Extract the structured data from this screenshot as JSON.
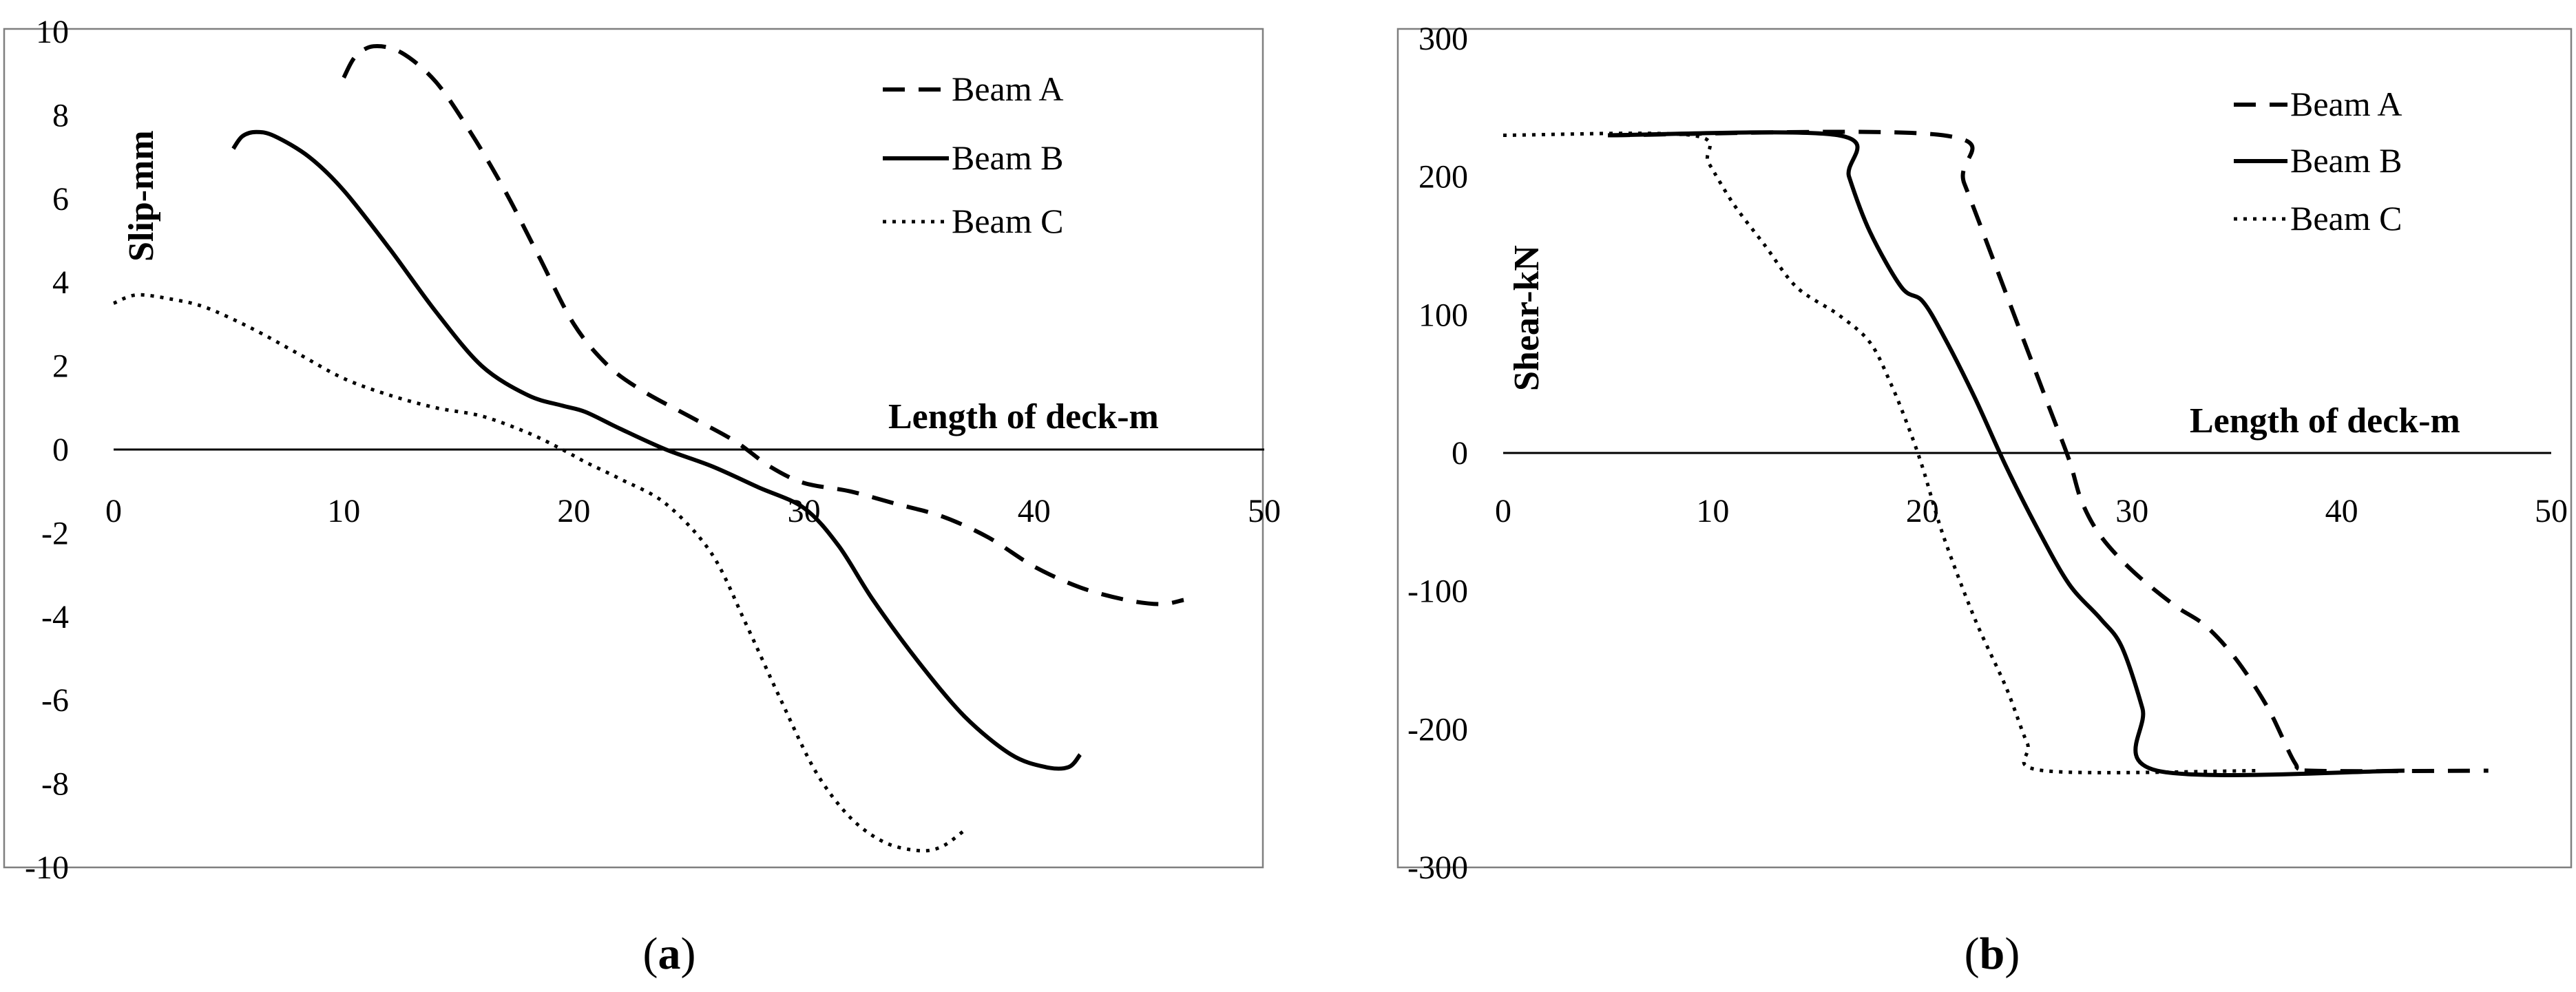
{
  "chart_data": [
    {
      "type": "line",
      "panel": "a",
      "caption_open": "(",
      "caption_letter": "a",
      "caption_close": ")",
      "title": "",
      "xlabel": "Length of deck-m",
      "ylabel": "Slip-mm",
      "xlim": [
        0,
        50
      ],
      "ylim": [
        -10,
        10
      ],
      "xticks": [
        0,
        10,
        20,
        30,
        40,
        50
      ],
      "yticks": [
        10,
        8,
        6,
        4,
        2,
        0,
        -2,
        -4,
        -6,
        -8,
        -10
      ],
      "legend_position": "top-right",
      "series": [
        {
          "name": "Beam A",
          "style": "dashed",
          "x": [
            10,
            10.5,
            11.3,
            12.5,
            14,
            15.5,
            17,
            18.5,
            20,
            21.5,
            23,
            25,
            27,
            28.5,
            30,
            32,
            34,
            36,
            38,
            40,
            42,
            44,
            45.5,
            46.5
          ],
          "y": [
            8.9,
            9.4,
            9.65,
            9.5,
            8.8,
            7.6,
            6.2,
            4.6,
            3.0,
            2.0,
            1.4,
            0.8,
            0.2,
            -0.4,
            -0.8,
            -1.0,
            -1.3,
            -1.6,
            -2.1,
            -2.8,
            -3.3,
            -3.6,
            -3.7,
            -3.6
          ]
        },
        {
          "name": "Beam B",
          "style": "solid",
          "x": [
            5.2,
            5.6,
            6.2,
            7,
            8.5,
            10,
            12,
            14,
            16,
            18,
            19.5,
            20.5,
            22,
            24,
            26,
            28,
            30,
            31.5,
            33,
            35,
            37,
            39,
            40.5,
            41.5,
            42
          ],
          "y": [
            7.2,
            7.5,
            7.6,
            7.5,
            7.0,
            6.2,
            4.8,
            3.3,
            2.0,
            1.3,
            1.05,
            0.9,
            0.5,
            0.0,
            -0.4,
            -0.9,
            -1.4,
            -2.3,
            -3.6,
            -5.1,
            -6.4,
            -7.3,
            -7.6,
            -7.6,
            -7.3
          ]
        },
        {
          "name": "Beam C",
          "style": "dotted",
          "x": [
            0,
            1,
            2.5,
            4,
            6,
            8,
            10,
            12,
            14,
            16,
            18,
            19.5,
            20.5,
            22,
            24,
            26,
            27.5,
            29,
            30.5,
            32,
            33.5,
            35,
            36,
            37
          ],
          "y": [
            3.5,
            3.7,
            3.6,
            3.4,
            2.9,
            2.3,
            1.7,
            1.3,
            1.0,
            0.8,
            0.4,
            0.0,
            -0.3,
            -0.7,
            -1.3,
            -2.5,
            -4.2,
            -6.0,
            -7.7,
            -8.8,
            -9.4,
            -9.6,
            -9.5,
            -9.1
          ]
        }
      ]
    },
    {
      "type": "line",
      "panel": "b",
      "caption_open": "(",
      "caption_letter": "b",
      "caption_close": ")",
      "title": "",
      "xlabel": "Length of deck-m",
      "ylabel": "Shear-kN",
      "xlim": [
        0,
        50
      ],
      "ylim": [
        -300,
        300
      ],
      "xticks": [
        0,
        10,
        20,
        30,
        40,
        50
      ],
      "yticks": [
        300,
        200,
        100,
        0,
        -100,
        -200,
        -300
      ],
      "legend_position": "top-right",
      "series": [
        {
          "name": "Beam A",
          "style": "dashed",
          "x": [
            5,
            21,
            22,
            24,
            26,
            27,
            27.6,
            28.5,
            30,
            32,
            33.5,
            35,
            36.5,
            37.8,
            38.5,
            47
          ],
          "y": [
            230,
            230,
            195,
            115,
            35,
            -5,
            -35,
            -60,
            -85,
            -110,
            -125,
            -150,
            -185,
            -225,
            -230,
            -230
          ]
        },
        {
          "name": "Beam B",
          "style": "solid",
          "x": [
            5,
            16,
            16.5,
            17.5,
            19,
            20,
            21,
            22.5,
            24,
            25.5,
            27,
            28.5,
            29.5,
            30.5,
            31.2,
            43
          ],
          "y": [
            230,
            230,
            200,
            160,
            120,
            110,
            85,
            40,
            -10,
            -55,
            -95,
            -120,
            -140,
            -185,
            -230,
            -230
          ]
        },
        {
          "name": "Beam C",
          "style": "dotted",
          "x": [
            0,
            9,
            9.8,
            11,
            12.5,
            14,
            16,
            17.5,
            18.5,
            19.3,
            20,
            21,
            22.5,
            24,
            25,
            25.8,
            36
          ],
          "y": [
            230,
            230,
            210,
            180,
            150,
            120,
            100,
            80,
            50,
            20,
            -10,
            -60,
            -120,
            -170,
            -210,
            -230,
            -230
          ]
        }
      ]
    }
  ]
}
